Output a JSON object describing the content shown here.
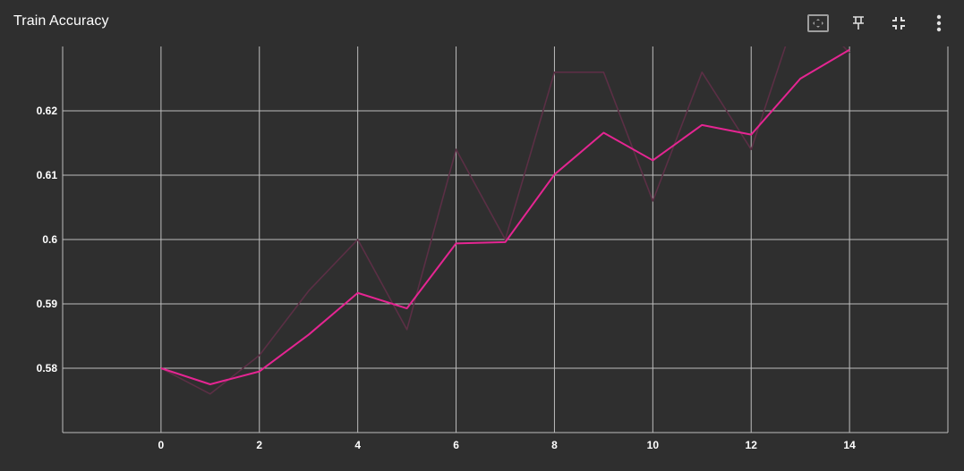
{
  "header": {
    "title": "Train Accuracy",
    "toolbar": [
      {
        "icon": "fit-domain-icon"
      },
      {
        "icon": "pin-icon"
      },
      {
        "icon": "collapse-icon"
      },
      {
        "icon": "more-vert-icon"
      }
    ]
  },
  "colors": {
    "background": "#2f2f2f",
    "grid": "#bdbdbd",
    "smoothed": "#e52592",
    "raw": "#5b2f45",
    "text": "#ffffff"
  },
  "chart_data": {
    "type": "line",
    "title": "Train Accuracy",
    "xlabel": "",
    "ylabel": "",
    "xlim": [
      -2,
      16
    ],
    "ylim": [
      0.57,
      0.63
    ],
    "x_ticks": [
      0,
      2,
      4,
      6,
      8,
      10,
      12,
      14
    ],
    "y_ticks": [
      0.58,
      0.59,
      0.6,
      0.61,
      0.62
    ],
    "y_tick_labels": [
      "0.58",
      "0.59",
      "0.6",
      "0.61",
      "0.62"
    ],
    "grid": true,
    "series": [
      {
        "role": "raw",
        "x": [
          0,
          1,
          2,
          3,
          4,
          5,
          6,
          7,
          8,
          9,
          10,
          11,
          12,
          13,
          14
        ],
        "values": [
          0.58,
          0.576,
          0.582,
          0.592,
          0.6,
          0.586,
          0.614,
          0.6,
          0.626,
          0.626,
          0.606,
          0.626,
          0.614,
          0.637,
          0.629
        ]
      },
      {
        "role": "smoothed",
        "x": [
          0,
          1,
          2,
          3,
          4,
          5,
          6,
          7,
          8,
          9,
          10,
          11,
          12,
          13,
          14
        ],
        "values": [
          0.58,
          0.5775,
          0.5795,
          0.5852,
          0.5917,
          0.5893,
          0.5994,
          0.5996,
          0.6101,
          0.6166,
          0.6123,
          0.6178,
          0.6163,
          0.625,
          0.6295
        ]
      }
    ]
  }
}
